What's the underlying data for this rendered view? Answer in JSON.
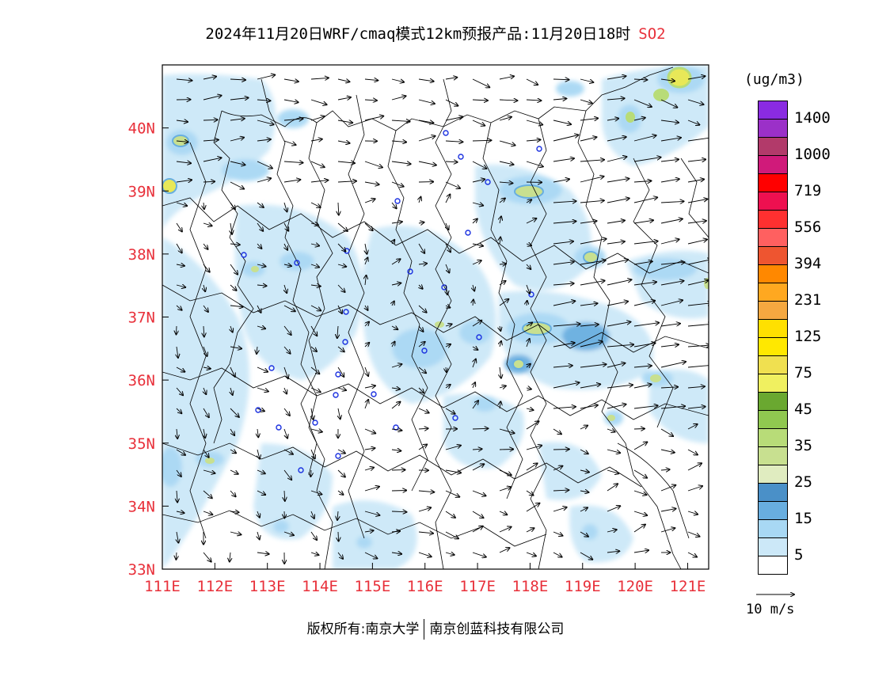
{
  "title": {
    "main": "2024年11月20日WRF/cmaq模式12km预报产品:11月20日18时",
    "pollutant": "SO2"
  },
  "map": {
    "lat_labels": [
      "40N",
      "39N",
      "38N",
      "37N",
      "36N",
      "35N",
      "34N",
      "33N"
    ],
    "lon_labels": [
      "111E",
      "112E",
      "113E",
      "114E",
      "115E",
      "116E",
      "117E",
      "118E",
      "119E",
      "120E",
      "121E"
    ],
    "lat_values": [
      40,
      39,
      38,
      37,
      36,
      35,
      34,
      33
    ],
    "lon_values": [
      111,
      112,
      113,
      114,
      115,
      116,
      117,
      118,
      119,
      120,
      121
    ],
    "extent": {
      "lon_min": 111,
      "lon_max": 121.4,
      "lat_min": 33,
      "lat_max": 41
    }
  },
  "legend": {
    "units": "(ug/m3)",
    "labels": [
      "1400",
      "1000",
      "719",
      "556",
      "394",
      "231",
      "125",
      "75",
      "45",
      "35",
      "25",
      "15",
      "5"
    ],
    "colors": [
      "#8a2be2",
      "#9b30c8",
      "#b23a6a",
      "#d01a7a",
      "#ff0000",
      "#ee1050",
      "#ff3030",
      "#ff6060",
      "#ee5530",
      "#ff8800",
      "#ffa820",
      "#f5a840",
      "#ffe000",
      "#ffe800",
      "#f0e050",
      "#f0f060",
      "#6aa830",
      "#90c850",
      "#b8dc78",
      "#c8e090",
      "#e0ecc0",
      "#4a90c8",
      "#68aee0",
      "#a8d8f4",
      "#cce8f8",
      "#ffffff"
    ],
    "wind_scale_label": "10 m/s"
  },
  "footer": {
    "left": "版权所有:南京大学",
    "right": "南京创蓝科技有限公司"
  },
  "colors": {
    "axis_label": "#e8303a",
    "pollutant_label": "#e8303a",
    "frame": "#000000"
  }
}
